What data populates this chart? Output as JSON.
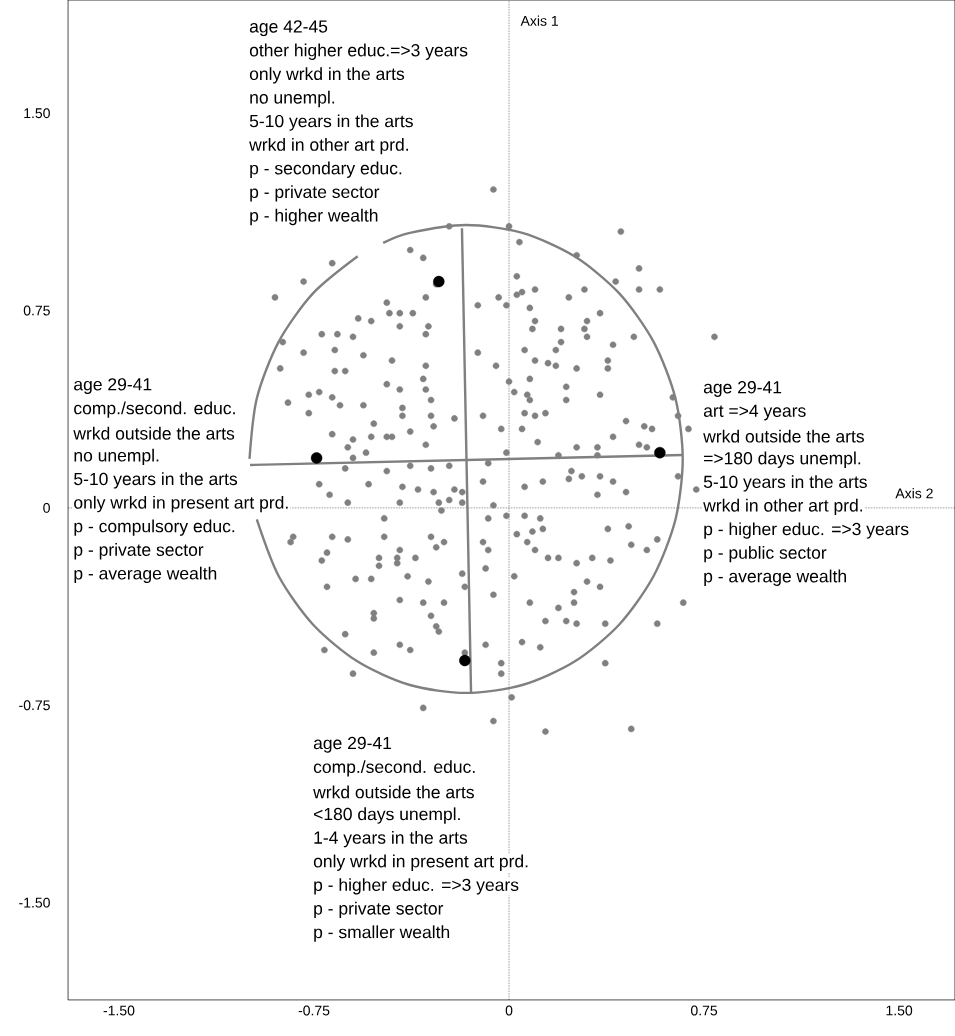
{
  "chart_data": {
    "type": "scatter",
    "marker": "circle",
    "xlim": [
      -1.696,
      1.715
    ],
    "ylim": [
      -1.87,
      1.93
    ],
    "xticks": [
      {
        "value": -1.5,
        "label": "-1.50"
      },
      -0.75,
      0,
      0.75,
      {
        "value": 1.5,
        "label": "1.50"
      }
    ],
    "yticks": [
      {
        "value": -1.5,
        "label": "-1.50"
      },
      -0.75,
      0,
      0.75,
      {
        "value": 1.5,
        "label": "1.50"
      }
    ],
    "series": [
      {
        "color": "#808080",
        "x": [
          -0.23,
          -0.38,
          -0.33,
          -0.68,
          -0.79,
          -0.9,
          -0.32,
          -0.47,
          -0.46,
          -0.42,
          -0.37,
          -0.58,
          -0.53,
          -0.31,
          -0.42,
          -0.72,
          -0.66,
          -0.6,
          -0.32,
          -0.87,
          -0.79,
          -0.67,
          -0.56,
          -0.45,
          -0.88,
          -0.67,
          -0.63,
          -0.32,
          -0.33,
          -0.47,
          -0.42,
          -0.32,
          -0.77,
          -0.73,
          -0.68,
          -0.3,
          -0.85,
          -0.65,
          -0.56,
          -0.41,
          -0.77,
          -0.41,
          -0.3,
          -0.52,
          -0.29,
          -0.68,
          -0.47,
          -0.45,
          -0.38,
          -0.6,
          -0.53,
          -0.62,
          -0.55,
          -0.32,
          -0.6,
          -0.21,
          -0.12,
          -0.12,
          -0.28,
          -0.06,
          0.0,
          0.04,
          0.43,
          0.26,
          0.5,
          0.03,
          0.41,
          0.5,
          0.58,
          -0.04,
          0.03,
          0.05,
          0.1,
          0.23,
          0.29,
          -0.01,
          0.08,
          0.35,
          0.1,
          0.09,
          0.2,
          0.3,
          0.29,
          0.3,
          0.48,
          0.79,
          0.2,
          0.4,
          0.06,
          0.18,
          -0.05,
          0.1,
          0.15,
          0.18,
          0.26,
          0.38,
          0.38,
          0.08,
          0.0,
          0.02,
          0.22,
          0.07,
          0.08,
          0.22,
          0.35,
          0.63,
          0.06,
          0.1,
          0.14,
          -0.1,
          0.65,
          0.45,
          -0.03,
          0.05,
          0.52,
          0.55,
          0.69,
          0.11,
          0.4,
          0.26,
          0.34,
          0.5,
          0.53,
          -0.01,
          0.19,
          0.34,
          -0.63,
          -0.47,
          -0.38,
          -0.3,
          -0.23,
          -0.73,
          -0.69,
          -0.54,
          -0.41,
          -0.35,
          -0.29,
          -0.21,
          -0.18,
          -0.62,
          -0.42,
          -0.27,
          -0.23,
          -0.18,
          -0.26,
          -0.48,
          -0.83,
          -0.84,
          -0.68,
          -0.62,
          -0.48,
          -0.3,
          -0.25,
          -0.28,
          -0.42,
          -0.7,
          -0.72,
          -0.5,
          -0.43,
          -0.36,
          -0.5,
          -0.43,
          -0.39,
          -0.59,
          -0.53,
          -0.18,
          -0.31,
          -0.17,
          -0.7,
          -0.42,
          -0.33,
          -0.25,
          -0.52,
          -0.52,
          -0.3,
          -0.28,
          -0.27,
          -0.63,
          -0.42,
          -0.38,
          -0.52,
          -0.71,
          -0.17,
          -0.6,
          -0.33,
          -0.08,
          -0.1,
          0.06,
          0.13,
          0.23,
          0.24,
          0.28,
          0.35,
          0.4,
          0.34,
          0.45,
          0.65,
          0.72,
          -0.06,
          -0.08,
          -0.01,
          0.06,
          0.12,
          0.13,
          0.09,
          0.03,
          0.07,
          0.1,
          -0.1,
          -0.08,
          0.38,
          0.46,
          0.47,
          0.53,
          0.57,
          0.15,
          0.19,
          0.26,
          0.32,
          0.39,
          -0.09,
          0.02,
          0.3,
          0.35,
          -0.06,
          0.08,
          0.25,
          0.25,
          0.19,
          0.14,
          0.22,
          0.26,
          0.37,
          0.57,
          0.67,
          -0.09,
          0.05,
          0.12,
          -0.03,
          -0.03,
          0.37,
          0.01,
          -0.06,
          0.14,
          0.47
        ],
        "values": [
          1.07,
          0.98,
          0.95,
          0.93,
          0.86,
          0.8,
          0.8,
          0.78,
          0.74,
          0.74,
          0.74,
          0.72,
          0.71,
          0.69,
          0.69,
          0.66,
          0.66,
          0.65,
          0.66,
          0.63,
          0.59,
          0.6,
          0.58,
          0.56,
          0.53,
          0.52,
          0.52,
          0.54,
          0.49,
          0.47,
          0.45,
          0.45,
          0.43,
          0.44,
          0.42,
          0.41,
          0.4,
          0.39,
          0.39,
          0.38,
          0.36,
          0.35,
          0.35,
          0.32,
          0.31,
          0.28,
          0.27,
          0.27,
          0.29,
          0.26,
          0.27,
          0.23,
          0.21,
          0.24,
          0.19,
          0.34,
          0.77,
          0.59,
          0.85,
          1.21,
          1.07,
          1.01,
          1.05,
          0.96,
          0.91,
          0.88,
          0.86,
          0.83,
          0.83,
          0.8,
          0.81,
          0.82,
          0.83,
          0.8,
          0.83,
          0.77,
          0.76,
          0.74,
          0.71,
          0.68,
          0.68,
          0.71,
          0.68,
          0.65,
          0.65,
          0.65,
          0.63,
          0.62,
          0.6,
          0.6,
          0.54,
          0.56,
          0.55,
          0.54,
          0.53,
          0.56,
          0.53,
          0.49,
          0.48,
          0.44,
          0.46,
          0.43,
          0.41,
          0.41,
          0.43,
          0.42,
          0.36,
          0.35,
          0.36,
          0.35,
          0.35,
          0.33,
          0.3,
          0.3,
          0.31,
          0.3,
          0.3,
          0.25,
          0.27,
          0.23,
          0.23,
          0.24,
          0.23,
          0.21,
          0.2,
          0.2,
          0.15,
          0.14,
          0.16,
          0.15,
          0.16,
          0.09,
          0.05,
          0.09,
          0.08,
          0.07,
          0.06,
          0.07,
          0.06,
          0.02,
          0.02,
          0.02,
          0.03,
          0.02,
          -0.01,
          -0.04,
          -0.11,
          -0.13,
          -0.11,
          -0.12,
          -0.11,
          -0.11,
          -0.13,
          -0.15,
          -0.16,
          -0.17,
          -0.2,
          -0.19,
          -0.19,
          -0.19,
          -0.22,
          -0.21,
          -0.26,
          -0.27,
          -0.27,
          -0.25,
          -0.28,
          -0.3,
          -0.3,
          -0.35,
          -0.36,
          -0.36,
          -0.4,
          -0.42,
          -0.41,
          -0.45,
          -0.47,
          -0.48,
          -0.52,
          -0.54,
          -0.55,
          -0.54,
          -0.55,
          -0.63,
          -0.76,
          0.17,
          0.1,
          0.08,
          0.1,
          0.11,
          0.14,
          0.12,
          0.12,
          0.1,
          0.05,
          0.06,
          0.12,
          0.07,
          0.01,
          -0.04,
          -0.03,
          -0.03,
          -0.04,
          -0.08,
          -0.09,
          -0.1,
          -0.13,
          -0.16,
          -0.13,
          -0.16,
          -0.08,
          -0.07,
          -0.14,
          -0.16,
          -0.12,
          -0.19,
          -0.19,
          -0.21,
          -0.19,
          -0.2,
          -0.23,
          -0.26,
          -0.28,
          -0.3,
          -0.33,
          -0.36,
          -0.32,
          -0.36,
          -0.38,
          -0.43,
          -0.43,
          -0.44,
          -0.44,
          -0.44,
          -0.36,
          -0.52,
          -0.51,
          -0.53,
          -0.59,
          -0.63,
          -0.59,
          -0.72,
          -0.81,
          -0.85,
          -0.84
        ]
      },
      {
        "type": "line",
        "color": "#808080",
        "marker": "none",
        "x": [
          -0.97,
          -0.886,
          -0.754,
          -0.582,
          -0.381,
          -0.165,
          0.051,
          0.252,
          0.424,
          0.556,
          0.64,
          0.668,
          0.64,
          0.556,
          0.424,
          0.252,
          0.051,
          -0.165,
          -0.381,
          -0.484
        ],
        "values": [
          -0.044,
          -0.259,
          -0.443,
          -0.584,
          -0.673,
          -0.703,
          -0.673,
          -0.584,
          -0.443,
          -0.259,
          -0.044,
          0.186,
          0.416,
          0.631,
          0.815,
          0.956,
          1.045,
          1.075,
          1.045,
          1.007
        ]
      },
      {
        "type": "line",
        "color": "#808080",
        "marker": "none",
        "x": [
          -0.582,
          -0.754,
          -0.886,
          -0.97,
          -0.998
        ],
        "values": [
          0.956,
          0.815,
          0.631,
          0.416,
          0.186
        ]
      },
      {
        "type": "line",
        "color": "#808080",
        "marker": "none",
        "x": [
          -0.996,
          0.669
        ],
        "values": [
          0.163,
          0.201
        ]
      },
      {
        "type": "line",
        "color": "#808080",
        "marker": "none",
        "x": [
          -0.181,
          -0.146
        ],
        "values": [
          1.063,
          -0.703
        ]
      },
      {
        "color": "#000000",
        "x": [
          -0.27,
          -0.74,
          0.58,
          -0.17
        ],
        "values": [
          0.86,
          0.19,
          0.21,
          -0.58
        ]
      }
    ],
    "ref_lines": [
      {
        "axis": "x",
        "value": 0,
        "label": "Axis 1",
        "line_style": "dotted",
        "color": "#000000"
      },
      {
        "axis": "y",
        "value": 0,
        "label": "Axis 2",
        "line_style": "dotted",
        "color": "#000000"
      }
    ],
    "annotations": [
      "age 42-45",
      "other higher educ.=>3 years",
      "only wrkd in the arts",
      "no unempl.",
      "5-10 years in the arts",
      "wrkd in other art prd.",
      "p - secondary educ.",
      "p - private sector",
      "p - higher wealth",
      "age 29-41",
      "comp./second. educ.",
      "wrkd outside the arts",
      "no unempl.",
      "5-10 years in the arts",
      "only wrkd in present art prd.",
      "p - compulsory educ.",
      "p - private sector",
      "p - average wealth",
      "age 29-41",
      "art =>4 years",
      "wrkd outside the arts",
      "=>180 days unempl.",
      "5-10 years in the arts",
      "wrkd in other art prd.",
      "p - higher educ. =>3 years",
      "p - public sector",
      "p - average wealth",
      "age 29-41",
      "comp./second. educ.",
      "wrkd outside the arts",
      "<180 days unempl.",
      "1-4 years in the arts",
      "only wrkd in present art prd.",
      "p - higher educ. =>3 years",
      "p - private sector",
      "p - smaller wealth"
    ]
  }
}
